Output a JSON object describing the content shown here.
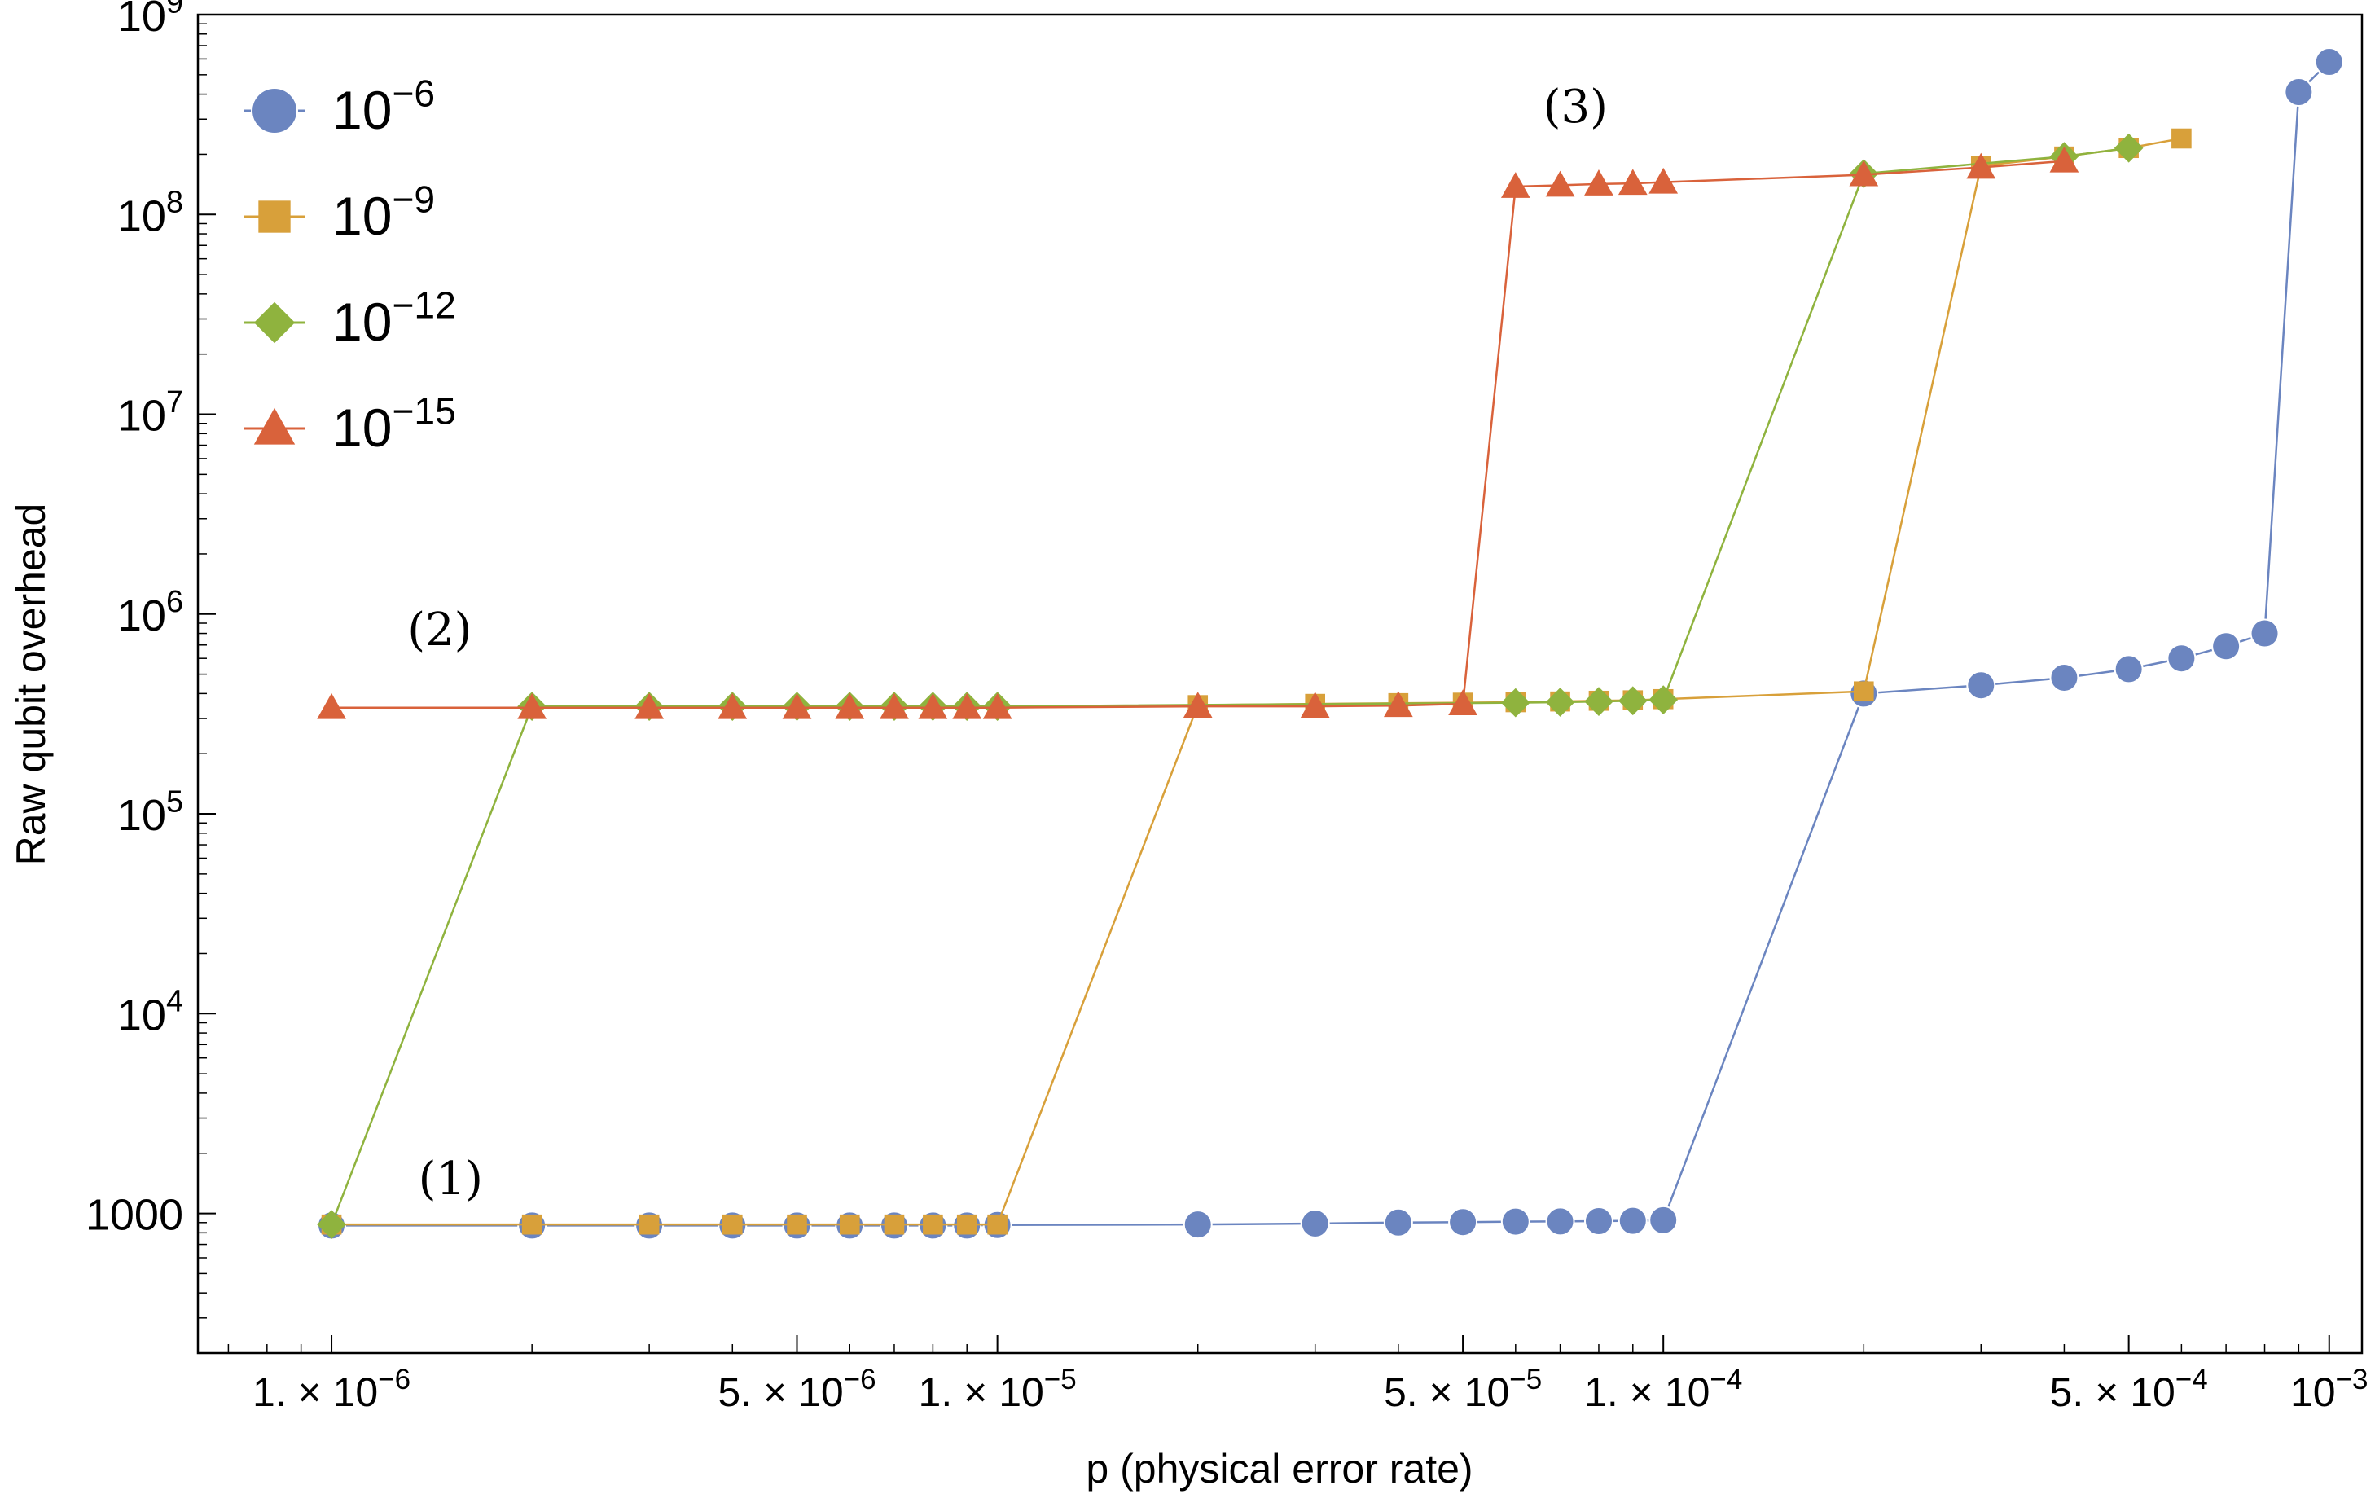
{
  "chart_data": {
    "type": "line",
    "xscale": "log",
    "yscale": "log",
    "xlim": [
      6.3e-07,
      0.00112
    ],
    "ylim": [
      200,
      1000000000.0
    ],
    "xlabel": "p (physical error rate)",
    "ylabel": "Raw qubit overhead",
    "grid": false,
    "legend_position": "top-left",
    "x_ticks": [
      {
        "value": 1e-06,
        "label": "1. × 10",
        "exp": "−6"
      },
      {
        "value": 5e-06,
        "label": "5. × 10",
        "exp": "−6"
      },
      {
        "value": 1e-05,
        "label": "1. × 10",
        "exp": "−5"
      },
      {
        "value": 5e-05,
        "label": "5. × 10",
        "exp": "−5"
      },
      {
        "value": 0.0001,
        "label": "1. × 10",
        "exp": "−4"
      },
      {
        "value": 0.0005,
        "label": "5. × 10",
        "exp": "−4"
      },
      {
        "value": 0.001,
        "label": "10",
        "exp": "−3"
      }
    ],
    "y_ticks": [
      {
        "value": 1000,
        "label": "1000",
        "exp": ""
      },
      {
        "value": 10000.0,
        "label": "10",
        "exp": "4"
      },
      {
        "value": 100000.0,
        "label": "10",
        "exp": "5"
      },
      {
        "value": 1000000.0,
        "label": "10",
        "exp": "6"
      },
      {
        "value": 10000000.0,
        "label": "10",
        "exp": "7"
      },
      {
        "value": 100000000.0,
        "label": "10",
        "exp": "8"
      },
      {
        "value": 1000000000.0,
        "label": "10",
        "exp": "9"
      }
    ],
    "series": [
      {
        "name": "10^-6",
        "label": "10",
        "exp": "−6",
        "color": "#6b85c0",
        "marker": "circle",
        "points": [
          [
            1e-06,
            870
          ],
          [
            2e-06,
            870
          ],
          [
            3e-06,
            870
          ],
          [
            4e-06,
            870
          ],
          [
            5e-06,
            870
          ],
          [
            6e-06,
            870
          ],
          [
            7e-06,
            870
          ],
          [
            8e-06,
            870
          ],
          [
            9e-06,
            870
          ],
          [
            1e-05,
            875
          ],
          [
            2e-05,
            880
          ],
          [
            3e-05,
            890
          ],
          [
            4e-05,
            900
          ],
          [
            5e-05,
            905
          ],
          [
            6e-05,
            910
          ],
          [
            7e-05,
            912
          ],
          [
            8e-05,
            915
          ],
          [
            9e-05,
            918
          ],
          [
            0.0001,
            925
          ],
          [
            0.0002,
            400000
          ],
          [
            0.0003,
            440000
          ],
          [
            0.0004,
            480000
          ],
          [
            0.0005,
            530000
          ],
          [
            0.0006,
            600000
          ],
          [
            0.0007,
            690000
          ],
          [
            0.0008,
            800000
          ],
          [
            0.0009,
            410000000.0
          ],
          [
            0.001,
            580000000.0
          ]
        ]
      },
      {
        "name": "10^-9",
        "label": "10",
        "exp": "−9",
        "color": "#d8a03a",
        "marker": "square",
        "points": [
          [
            1e-06,
            880
          ],
          [
            2e-06,
            880
          ],
          [
            3e-06,
            880
          ],
          [
            4e-06,
            880
          ],
          [
            5e-06,
            880
          ],
          [
            6e-06,
            880
          ],
          [
            7e-06,
            880
          ],
          [
            8e-06,
            880
          ],
          [
            9e-06,
            880
          ],
          [
            1e-05,
            880
          ],
          [
            2e-05,
            350000
          ],
          [
            3e-05,
            355000
          ],
          [
            4e-05,
            358000
          ],
          [
            5e-05,
            360000
          ],
          [
            6e-05,
            362000
          ],
          [
            7e-05,
            365000
          ],
          [
            8e-05,
            368000
          ],
          [
            9e-05,
            370000
          ],
          [
            0.0001,
            375000
          ],
          [
            0.0002,
            410000
          ],
          [
            0.0003,
            175000000.0
          ],
          [
            0.0004,
            195000000.0
          ],
          [
            0.0005,
            215000000.0
          ],
          [
            0.0006,
            240000000.0
          ]
        ]
      },
      {
        "name": "10^-12",
        "label": "10",
        "exp": "−12",
        "color": "#8fb33e",
        "marker": "diamond",
        "points": [
          [
            1e-06,
            880
          ],
          [
            2e-06,
            345000
          ],
          [
            3e-06,
            345000
          ],
          [
            4e-06,
            345000
          ],
          [
            5e-06,
            345000
          ],
          [
            6e-06,
            345000
          ],
          [
            7e-06,
            345000
          ],
          [
            8e-06,
            345000
          ],
          [
            9e-06,
            345000
          ],
          [
            1e-05,
            345000
          ],
          [
            6e-05,
            360000
          ],
          [
            7e-05,
            362000
          ],
          [
            8e-05,
            365000
          ],
          [
            9e-05,
            368000
          ],
          [
            0.0001,
            372000
          ],
          [
            0.0002,
            160000000.0
          ],
          [
            0.0004,
            195000000.0
          ],
          [
            0.0005,
            215000000.0
          ]
        ]
      },
      {
        "name": "10^-15",
        "label": "10",
        "exp": "−15",
        "color": "#d9623b",
        "marker": "triangle",
        "points": [
          [
            1e-06,
            340000
          ],
          [
            2e-06,
            340000
          ],
          [
            3e-06,
            340000
          ],
          [
            4e-06,
            340000
          ],
          [
            5e-06,
            340000
          ],
          [
            6e-06,
            340000
          ],
          [
            7e-06,
            340000
          ],
          [
            8e-06,
            340000
          ],
          [
            9e-06,
            340000
          ],
          [
            1e-05,
            340000
          ],
          [
            2e-05,
            345000
          ],
          [
            3e-05,
            345000
          ],
          [
            4e-05,
            348000
          ],
          [
            5e-05,
            355000
          ],
          [
            6e-05,
            138000000.0
          ],
          [
            7e-05,
            140000000.0
          ],
          [
            8e-05,
            142000000.0
          ],
          [
            9e-05,
            143000000.0
          ],
          [
            0.0001,
            145000000.0
          ],
          [
            0.0002,
            158000000.0
          ],
          [
            0.0003,
            172000000.0
          ],
          [
            0.0004,
            185000000.0
          ]
        ]
      }
    ],
    "annotations": [
      {
        "text": "(1)",
        "x": 1.35e-06,
        "y": 1250
      },
      {
        "text": "(2)",
        "x": 1.3e-06,
        "y": 700000
      },
      {
        "text": "(3)",
        "x": 6.6e-05,
        "y": 290000000.0
      }
    ]
  }
}
